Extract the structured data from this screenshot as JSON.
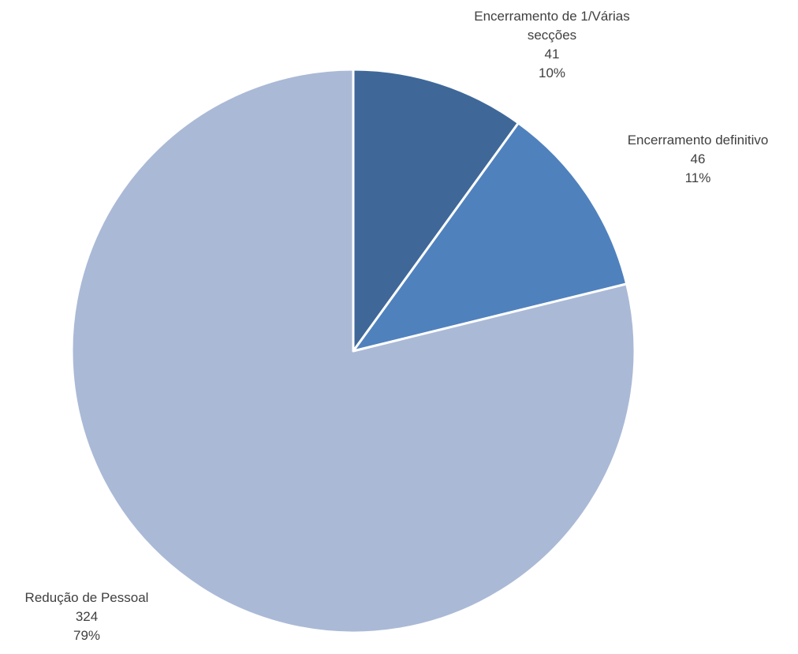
{
  "chart_data": {
    "type": "pie",
    "title": "",
    "start_angle_deg": 0,
    "direction": "clockwise",
    "slices": [
      {
        "label_lines": [
          "Encerramento de 1/Várias",
          "secções"
        ],
        "value": 41,
        "percent": "10%",
        "color": "#3F6899"
      },
      {
        "label_lines": [
          "Encerramento definitivo"
        ],
        "value": 46,
        "percent": "11%",
        "color": "#4F81BD"
      },
      {
        "label_lines": [
          "Redução de Pessoal"
        ],
        "value": 324,
        "percent": "79%",
        "color": "#AAB9D6"
      }
    ],
    "legend": "none",
    "slice_border_color": "#ffffff"
  }
}
